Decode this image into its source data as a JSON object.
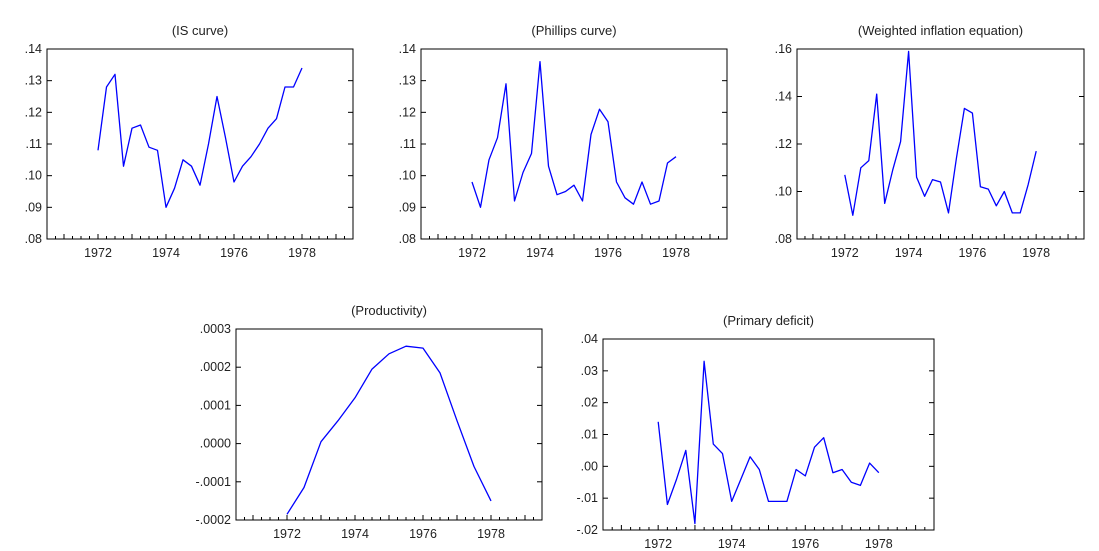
{
  "chart_data": [
    {
      "type": "line",
      "title": "(IS curve)",
      "ylim": [
        0.08,
        0.14
      ],
      "yticks": [
        ".14",
        ".13",
        ".12",
        ".11",
        ".10",
        ".09",
        ".08"
      ],
      "xlim": [
        1970.5,
        1979.5
      ],
      "xticks": [
        "1972",
        "1974",
        "1976",
        "1978"
      ],
      "grid": false,
      "series_color": "#0000ff",
      "x": [
        1972.0,
        1972.25,
        1972.5,
        1972.75,
        1973.0,
        1973.25,
        1973.5,
        1973.75,
        1974.0,
        1974.25,
        1974.5,
        1974.75,
        1975.0,
        1975.25,
        1975.5,
        1975.75,
        1976.0,
        1976.25,
        1976.5,
        1976.75,
        1977.0,
        1977.25,
        1977.5,
        1977.75,
        1978.0
      ],
      "y": [
        0.108,
        0.128,
        0.132,
        0.103,
        0.115,
        0.116,
        0.109,
        0.108,
        0.09,
        0.096,
        0.105,
        0.103,
        0.097,
        0.11,
        0.125,
        0.112,
        0.098,
        0.103,
        0.106,
        0.11,
        0.115,
        0.118,
        0.128,
        0.128,
        0.134
      ]
    },
    {
      "type": "line",
      "title": "(Phillips curve)",
      "ylim": [
        0.08,
        0.14
      ],
      "yticks": [
        ".14",
        ".13",
        ".12",
        ".11",
        ".10",
        ".09",
        ".08"
      ],
      "xlim": [
        1970.5,
        1979.5
      ],
      "xticks": [
        "1972",
        "1974",
        "1976",
        "1978"
      ],
      "grid": false,
      "series_color": "#0000ff",
      "x": [
        1972.0,
        1972.25,
        1972.5,
        1972.75,
        1973.0,
        1973.25,
        1973.5,
        1973.75,
        1974.0,
        1974.25,
        1974.5,
        1974.75,
        1975.0,
        1975.25,
        1975.5,
        1975.75,
        1976.0,
        1976.25,
        1976.5,
        1976.75,
        1977.0,
        1977.25,
        1977.5,
        1977.75,
        1978.0
      ],
      "y": [
        0.098,
        0.09,
        0.105,
        0.112,
        0.129,
        0.092,
        0.101,
        0.107,
        0.136,
        0.103,
        0.094,
        0.095,
        0.097,
        0.092,
        0.113,
        0.121,
        0.117,
        0.098,
        0.093,
        0.091,
        0.098,
        0.091,
        0.092,
        0.104,
        0.106
      ]
    },
    {
      "type": "line",
      "title": "(Weighted inflation equation)",
      "ylim": [
        0.08,
        0.16
      ],
      "yticks": [
        ".16",
        ".14",
        ".12",
        ".10",
        ".08"
      ],
      "xlim": [
        1970.5,
        1979.5
      ],
      "xticks": [
        "1972",
        "1974",
        "1976",
        "1978"
      ],
      "grid": false,
      "series_color": "#0000ff",
      "x": [
        1972.0,
        1972.25,
        1972.5,
        1972.75,
        1973.0,
        1973.25,
        1973.5,
        1973.75,
        1974.0,
        1974.25,
        1974.5,
        1974.75,
        1975.0,
        1975.25,
        1975.5,
        1975.75,
        1976.0,
        1976.25,
        1976.5,
        1976.75,
        1977.0,
        1977.25,
        1977.5,
        1977.75,
        1978.0
      ],
      "y": [
        0.107,
        0.09,
        0.11,
        0.113,
        0.141,
        0.095,
        0.109,
        0.121,
        0.159,
        0.106,
        0.098,
        0.105,
        0.104,
        0.091,
        0.114,
        0.135,
        0.133,
        0.102,
        0.101,
        0.094,
        0.1,
        0.091,
        0.091,
        0.103,
        0.117
      ]
    },
    {
      "type": "line",
      "title": "(Productivity)",
      "ylim": [
        -0.0002,
        0.0003
      ],
      "yticks": [
        ".0003",
        ".0002",
        ".0001",
        ".0000",
        "-.0001",
        "-.0002"
      ],
      "xlim": [
        1970.5,
        1979.5
      ],
      "xticks": [
        "1972",
        "1974",
        "1976",
        "1978"
      ],
      "grid": false,
      "series_color": "#0000ff",
      "x": [
        1972.0,
        1972.5,
        1973.0,
        1973.5,
        1974.0,
        1974.5,
        1975.0,
        1975.5,
        1976.0,
        1976.5,
        1977.0,
        1977.5,
        1978.0
      ],
      "y": [
        -0.000185,
        -0.000115,
        5e-06,
        6e-05,
        0.00012,
        0.000195,
        0.000235,
        0.000255,
        0.00025,
        0.000185,
        6e-05,
        -6e-05,
        -0.00015
      ]
    },
    {
      "type": "line",
      "title": "(Primary deficit)",
      "ylim": [
        -0.02,
        0.04
      ],
      "yticks": [
        ".04",
        ".03",
        ".02",
        ".01",
        ".00",
        "-.01",
        "-.02"
      ],
      "xlim": [
        1970.5,
        1979.5
      ],
      "xticks": [
        "1972",
        "1974",
        "1976",
        "1978"
      ],
      "grid": false,
      "series_color": "#0000ff",
      "x": [
        1972.0,
        1972.25,
        1972.5,
        1972.75,
        1973.0,
        1973.25,
        1973.5,
        1973.75,
        1974.0,
        1974.25,
        1974.5,
        1974.75,
        1975.0,
        1975.25,
        1975.5,
        1975.75,
        1976.0,
        1976.25,
        1976.5,
        1976.75,
        1977.0,
        1977.25,
        1977.5,
        1977.75,
        1978.0
      ],
      "y": [
        0.014,
        -0.012,
        -0.004,
        0.005,
        -0.018,
        0.033,
        0.007,
        0.004,
        -0.011,
        -0.004,
        0.003,
        -0.001,
        -0.011,
        -0.011,
        -0.011,
        -0.001,
        -0.003,
        0.006,
        0.009,
        -0.002,
        -0.001,
        -0.005,
        -0.006,
        0.001,
        -0.002
      ]
    }
  ]
}
